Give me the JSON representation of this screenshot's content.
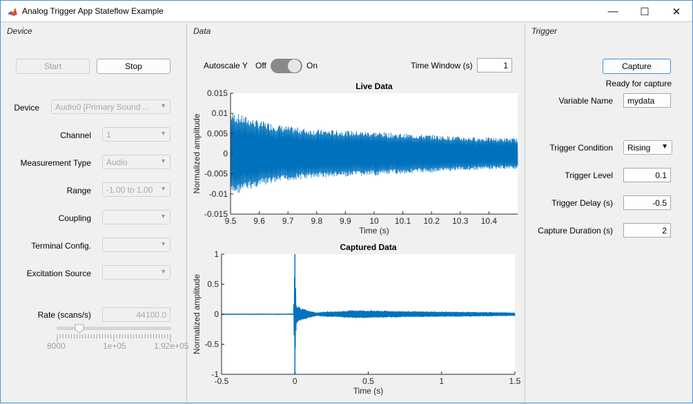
{
  "window": {
    "title": "Analog Trigger App Stateflow Example",
    "icon": "matlab-logo-icon",
    "controls": [
      "minimize-icon",
      "maximize-icon",
      "close-icon"
    ]
  },
  "device": {
    "title": "Device",
    "start_label": "Start",
    "stop_label": "Stop",
    "fields": [
      {
        "label": "Device",
        "value": "Audio0 [Primary Sound ..."
      },
      {
        "label": "Channel",
        "value": "1"
      },
      {
        "label": "Measurement Type",
        "value": "Audio"
      },
      {
        "label": "Range",
        "value": "-1.00 to 1.00"
      },
      {
        "label": "Coupling",
        "value": ""
      },
      {
        "label": "Terminal Config.",
        "value": ""
      },
      {
        "label": "Excitation Source",
        "value": ""
      }
    ],
    "rate_label": "Rate (scans/s)",
    "rate_value": "44100.0",
    "slider": {
      "min_label": "8000",
      "mid_label": "1e+05",
      "max_label": "1.92e+05",
      "min": 8000,
      "max": 192000,
      "value": 44100
    }
  },
  "data": {
    "title": "Data",
    "autoscale_label": "Autoscale Y",
    "off_label": "Off",
    "on_label": "On",
    "autoscale_on": true,
    "time_window_label": "Time Window (s)",
    "time_window_value": "1"
  },
  "trigger": {
    "title": "Trigger",
    "capture_label": "Capture",
    "status": "Ready for capture",
    "variable_name_label": "Variable Name",
    "variable_name_value": "mydata",
    "condition_label": "Trigger Condition",
    "condition_value": "Rising",
    "level_label": "Trigger Level",
    "level_value": "0.1",
    "delay_label": "Trigger Delay (s)",
    "delay_value": "-0.5",
    "duration_label": "Capture Duration (s)",
    "duration_value": "2"
  },
  "chart_data": [
    {
      "type": "line",
      "title": "Live Data",
      "xlabel": "Time (s)",
      "ylabel": "Normalized amplitude",
      "xlim": [
        9.5,
        10.5
      ],
      "ylim": [
        -0.015,
        0.015
      ],
      "xticks": [
        "9.5",
        "9.6",
        "9.7",
        "9.8",
        "9.9",
        "10",
        "10.1",
        "10.2",
        "10.3",
        "10.4"
      ],
      "yticks": [
        "-0.015",
        "-0.01",
        "-0.005",
        "0",
        "0.005",
        "0.01",
        "0.015"
      ],
      "color": "#0072bd",
      "envelope": {
        "t": [
          9.5,
          9.6,
          9.7,
          9.8,
          9.9,
          10.0,
          10.1,
          10.2,
          10.3,
          10.4,
          10.5
        ],
        "amp": [
          0.0105,
          0.0082,
          0.0068,
          0.006,
          0.0058,
          0.0055,
          0.005,
          0.0047,
          0.0042,
          0.004,
          0.0038
        ]
      }
    },
    {
      "type": "line",
      "title": "Captured Data",
      "xlabel": "Time (s)",
      "ylabel": "Normalized amplitude",
      "xlim": [
        -0.5,
        1.5
      ],
      "ylim": [
        -1,
        1
      ],
      "xticks": [
        "-0.5",
        "0",
        "0.5",
        "1",
        "1.5"
      ],
      "yticks": [
        "-1",
        "-0.5",
        "0",
        "0.5",
        "1"
      ],
      "color": "#0072bd",
      "envelope": {
        "t": [
          -0.5,
          -0.01,
          0,
          0.01,
          0.05,
          0.1,
          0.15,
          0.2,
          0.3,
          0.4,
          0.6,
          0.8,
          1.0,
          1.2,
          1.5
        ],
        "amp": [
          0.005,
          0.005,
          1,
          0.15,
          0.1,
          0.06,
          0.03,
          0.045,
          0.05,
          0.07,
          0.06,
          0.05,
          0.045,
          0.04,
          0.03
        ]
      }
    }
  ]
}
